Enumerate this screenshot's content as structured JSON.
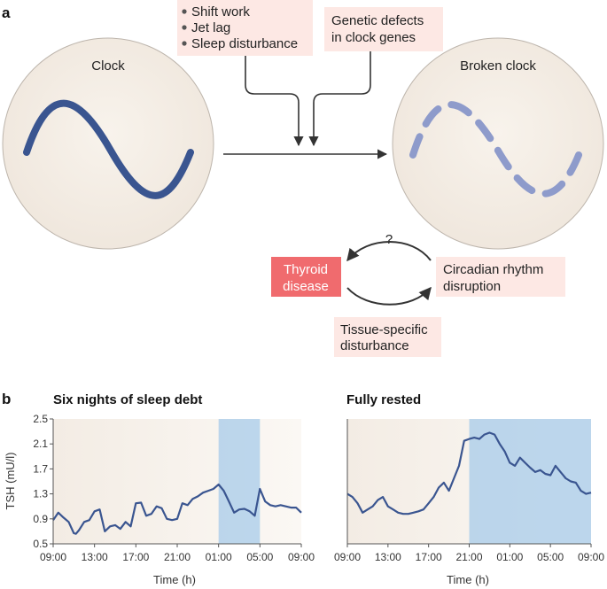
{
  "panel_a": {
    "letter": "a",
    "clock_label": "Clock",
    "broken_clock_label": "Broken clock",
    "factors": [
      "Shift work",
      "Jet lag",
      "Sleep disturbance"
    ],
    "genetic": [
      "Genetic defects",
      "in clock genes"
    ],
    "question_mark": "?",
    "thyroid": [
      "Thyroid",
      "disease"
    ],
    "circadian": [
      "Circadian rhythm",
      "disruption"
    ],
    "tissue": [
      "Tissue-specific",
      "disturbance"
    ],
    "colors": {
      "clock_face": "#f3ede6",
      "wave": "#3a5590",
      "broken_wave": "#8e9bcb",
      "pink_box": "#fde8e4",
      "thyroid_box": "#f06b6e",
      "arrow": "#333333"
    }
  },
  "panel_b": {
    "letter": "b",
    "chart_data": [
      {
        "type": "line",
        "title": "Six nights of sleep debt",
        "xlabel": "Time (h)",
        "ylabel": "TSH (mU/l)",
        "ylim": [
          0.5,
          2.5
        ],
        "yticks": [
          "0.5",
          "0.9",
          "1.3",
          "1.7",
          "2.1",
          "2.5"
        ],
        "xticks": [
          "09:00",
          "13:00",
          "17:00",
          "21:00",
          "01:00",
          "05:00",
          "09:00"
        ],
        "x_hours": [
          0,
          24
        ],
        "sleep_window_hours": [
          16,
          20
        ],
        "series": [
          {
            "x": [
              0,
              0.5,
              1,
              1.5,
              2,
              2.2,
              2.5,
              3,
              3.5,
              4,
              4.5,
              5,
              5.5,
              6,
              6.5,
              7,
              7.5,
              8,
              8.5,
              9,
              9.5,
              10,
              10.5,
              11,
              11.5,
              12,
              12.5,
              13,
              13.5,
              14,
              14.5,
              15,
              15.5,
              16,
              16.5,
              17,
              17.5,
              18,
              18.5,
              19,
              19.5,
              20,
              20.5,
              21,
              21.5,
              22,
              22.5,
              23,
              23.5,
              24
            ],
            "y": [
              0.88,
              1.0,
              0.92,
              0.85,
              0.67,
              0.66,
              0.72,
              0.85,
              0.88,
              1.02,
              1.05,
              0.7,
              0.78,
              0.8,
              0.74,
              0.85,
              0.78,
              1.15,
              1.16,
              0.95,
              0.98,
              1.1,
              1.07,
              0.9,
              0.88,
              0.9,
              1.15,
              1.12,
              1.22,
              1.26,
              1.32,
              1.35,
              1.38,
              1.45,
              1.35,
              1.18,
              1.0,
              1.05,
              1.06,
              1.02,
              0.95,
              1.38,
              1.18,
              1.12,
              1.1,
              1.12,
              1.1,
              1.08,
              1.08,
              1.0
            ]
          }
        ]
      },
      {
        "type": "line",
        "title": "Fully rested",
        "xlabel": "Time (h)",
        "ylabel": "",
        "ylim": [
          0.5,
          2.5
        ],
        "xticks": [
          "09:00",
          "13:00",
          "17:00",
          "21:00",
          "01:00",
          "05:00",
          "09:00"
        ],
        "x_hours": [
          0,
          24
        ],
        "sleep_window_hours": [
          12,
          24
        ],
        "series": [
          {
            "x": [
              0,
              0.5,
              1,
              1.5,
              2,
              2.5,
              3,
              3.5,
              4,
              4.5,
              5,
              5.5,
              6,
              6.5,
              7,
              7.5,
              8,
              8.5,
              9,
              9.5,
              10,
              10.5,
              11,
              11.5,
              12,
              12.5,
              13,
              13.5,
              14,
              14.5,
              15,
              15.5,
              16,
              16.5,
              17,
              17.5,
              18,
              18.5,
              19,
              19.5,
              20,
              20.5,
              21,
              21.5,
              22,
              22.5,
              23,
              23.5,
              24
            ],
            "y": [
              1.3,
              1.25,
              1.15,
              1.0,
              1.05,
              1.1,
              1.2,
              1.25,
              1.1,
              1.05,
              1.0,
              0.98,
              0.98,
              1.0,
              1.02,
              1.05,
              1.15,
              1.25,
              1.4,
              1.48,
              1.35,
              1.55,
              1.75,
              2.15,
              2.18,
              2.2,
              2.18,
              2.25,
              2.28,
              2.25,
              2.1,
              1.98,
              1.8,
              1.75,
              1.88,
              1.8,
              1.72,
              1.65,
              1.68,
              1.62,
              1.6,
              1.75,
              1.65,
              1.55,
              1.5,
              1.48,
              1.35,
              1.3,
              1.32
            ]
          }
        ]
      }
    ]
  }
}
